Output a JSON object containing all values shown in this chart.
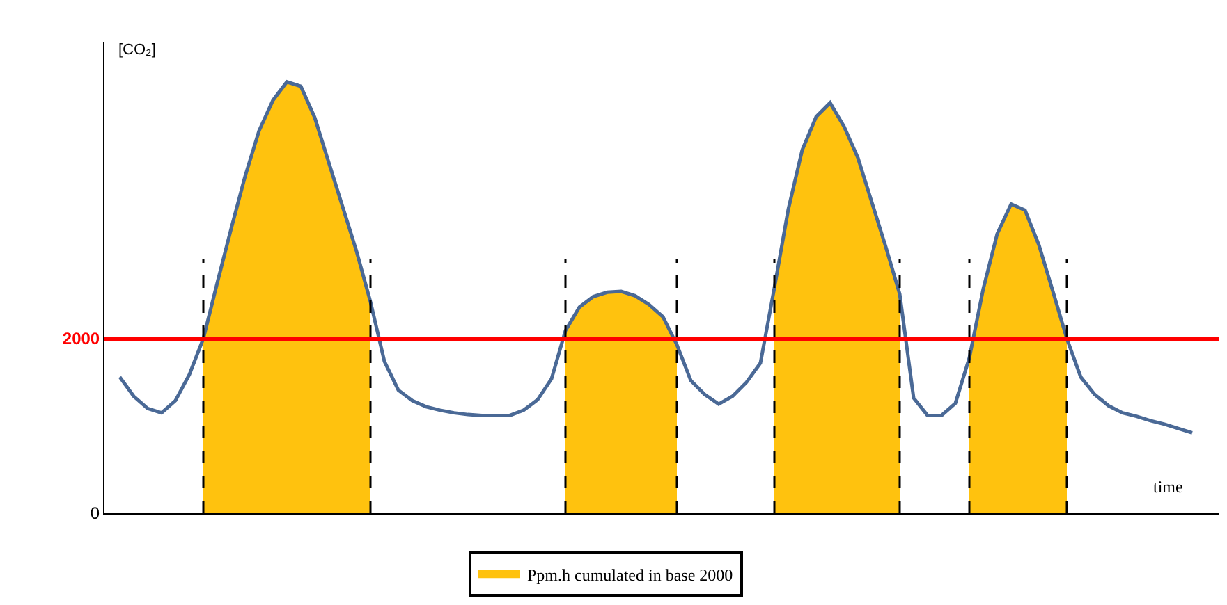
{
  "chart_data": {
    "type": "line",
    "xlabel": "time",
    "ylabel": "[CO₂]",
    "ylim": [
      0,
      5400
    ],
    "yticks": [
      0,
      2000
    ],
    "tick_labels": "y",
    "legend": "bottom",
    "marker": "none",
    "categories": [
      null,
      null,
      null,
      null,
      null,
      null,
      null,
      null,
      null,
      null,
      null,
      null,
      null,
      null,
      null,
      null,
      null,
      null,
      null,
      null,
      null,
      null,
      null,
      null,
      null,
      null,
      null,
      null,
      null,
      null,
      null,
      null,
      null,
      null,
      null,
      null,
      null,
      null,
      null,
      null,
      null,
      null,
      null,
      null,
      null,
      null,
      null,
      null,
      null,
      null,
      null,
      null,
      null,
      null,
      null,
      null,
      null,
      null,
      null,
      null,
      null,
      null,
      null,
      null,
      null,
      null,
      null,
      null,
      null,
      null,
      null,
      null,
      null,
      null,
      null,
      null,
      null,
      null
    ],
    "series": [
      {
        "type": "area",
        "name": "Ppm.h cumulated in base 2000",
        "color": "#ffc20e",
        "values": [
          null,
          null,
          null,
          null,
          null,
          null,
          2000,
          2640,
          3260,
          3860,
          4380,
          4730,
          4940,
          4890,
          4530,
          4020,
          3510,
          3000,
          2420,
          null,
          null,
          null,
          null,
          null,
          null,
          null,
          null,
          null,
          null,
          null,
          null,
          null,
          2090,
          2360,
          2480,
          2530,
          2540,
          2490,
          2390,
          2250,
          1930,
          null,
          null,
          null,
          null,
          null,
          null,
          2580,
          3480,
          4160,
          4540,
          4700,
          4430,
          4070,
          3560,
          3050,
          2510,
          null,
          null,
          null,
          null,
          1780,
          2570,
          3200,
          3540,
          3470,
          3070,
          2540,
          2000,
          null,
          null,
          null,
          null,
          null,
          null,
          null,
          null,
          null
        ]
      },
      {
        "color": "#4a6996",
        "line_style": "solid",
        "values": [
          1560,
          1340,
          1200,
          1150,
          1290,
          1590,
          2000,
          2640,
          3260,
          3860,
          4380,
          4730,
          4940,
          4890,
          4530,
          4020,
          3510,
          3000,
          2420,
          1740,
          1410,
          1290,
          1220,
          1180,
          1150,
          1130,
          1120,
          1120,
          1120,
          1180,
          1300,
          1540,
          2090,
          2360,
          2480,
          2530,
          2540,
          2490,
          2390,
          2250,
          1930,
          1520,
          1360,
          1250,
          1340,
          1500,
          1720,
          2580,
          3480,
          4160,
          4540,
          4700,
          4430,
          4070,
          3560,
          3050,
          2510,
          1320,
          1120,
          1120,
          1260,
          1780,
          2570,
          3200,
          3540,
          3470,
          3070,
          2540,
          2000,
          1560,
          1360,
          1230,
          1150,
          1110,
          1060,
          1020,
          970,
          920
        ]
      }
    ],
    "ref_lines": [
      {
        "axis": "y",
        "value": 2000,
        "color": "#ff0000",
        "line_style": "solid"
      }
    ]
  }
}
